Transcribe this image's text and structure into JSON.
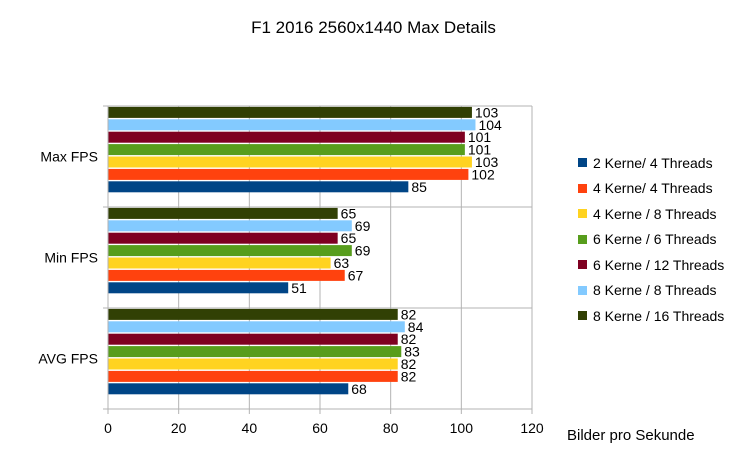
{
  "chart_data": {
    "type": "bar",
    "orientation": "horizontal",
    "title": "F1 2016 2560x1440 Max Details",
    "xlabel": "Bilder pro Sekunde",
    "ylabel": "",
    "xlim": [
      0,
      120
    ],
    "x_ticks": [
      "0",
      "20",
      "40",
      "60",
      "80",
      "100",
      "120"
    ],
    "grid": true,
    "legend_position": "right",
    "categories": [
      "Max FPS",
      "Min FPS",
      "AVG FPS"
    ],
    "series": [
      {
        "name": "2 Kerne/ 4 Threads",
        "color": "#004586",
        "values": [
          85,
          51,
          68
        ]
      },
      {
        "name": "4 Kerne/ 4 Threads",
        "color": "#ff420e",
        "values": [
          102,
          67,
          82
        ]
      },
      {
        "name": "4 Kerne / 8 Threads",
        "color": "#ffd320",
        "values": [
          103,
          63,
          82
        ]
      },
      {
        "name": "6 Kerne / 6 Threads",
        "color": "#579d1c",
        "values": [
          101,
          69,
          83
        ]
      },
      {
        "name": "6 Kerne / 12 Threads",
        "color": "#7e0021",
        "values": [
          101,
          65,
          82
        ]
      },
      {
        "name": "8 Kerne / 8 Threads",
        "color": "#83caff",
        "values": [
          104,
          69,
          84
        ]
      },
      {
        "name": "8 Kerne / 16 Threads",
        "color": "#314004",
        "values": [
          103,
          65,
          82
        ]
      }
    ]
  }
}
